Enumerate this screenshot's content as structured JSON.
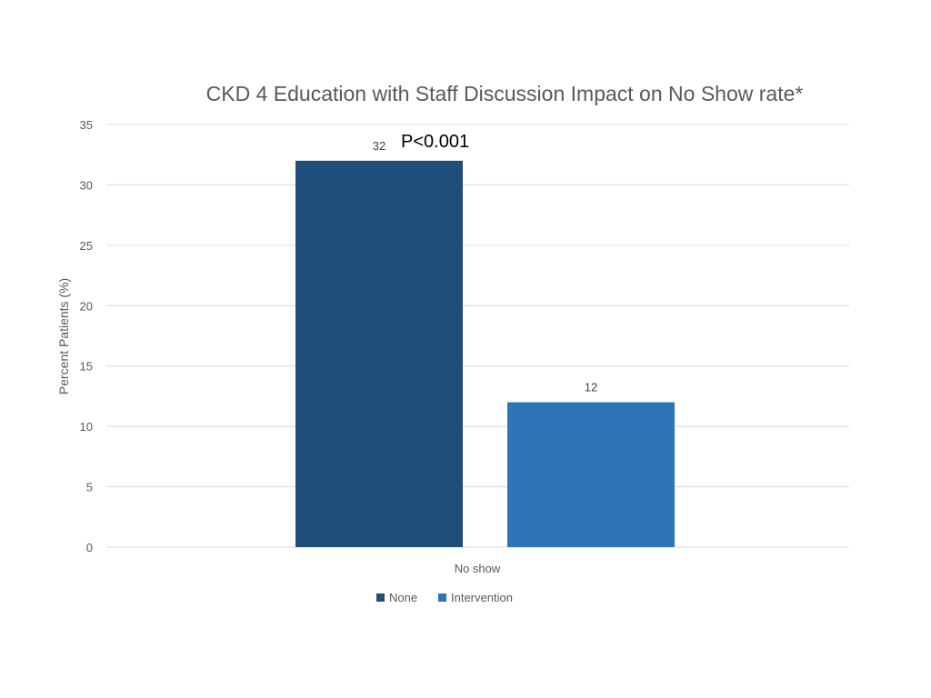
{
  "chart_data": {
    "type": "bar",
    "title": "CKD 4 Education with Staff Discussion Impact on No Show rate*",
    "xlabel": "",
    "ylabel": "Percent Patients (%)",
    "categories": [
      "No show"
    ],
    "series": [
      {
        "name": "None",
        "values": [
          32
        ],
        "color": "#1f4e79"
      },
      {
        "name": "Intervention",
        "values": [
          12
        ],
        "color": "#2e75b6"
      }
    ],
    "ylim": [
      0,
      35
    ],
    "yticks": [
      0,
      5,
      10,
      15,
      20,
      25,
      30,
      35
    ],
    "grid": true,
    "legend_position": "bottom",
    "annotation": "P<0.001"
  },
  "colors": {
    "grid": "#d9d9d9",
    "text": "#595959"
  }
}
